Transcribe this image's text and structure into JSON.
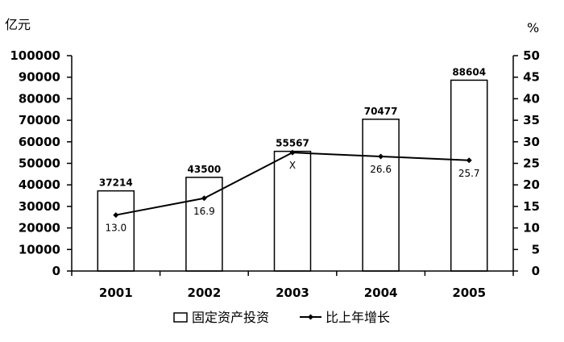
{
  "chart_data": {
    "type": "bar",
    "categories": [
      "2001",
      "2002",
      "2003",
      "2004",
      "2005"
    ],
    "left_unit": "亿元",
    "right_unit": "%",
    "ylim_left": [
      0,
      100000
    ],
    "yticks_left": [
      "0",
      "10000",
      "20000",
      "30000",
      "40000",
      "50000",
      "60000",
      "70000",
      "80000",
      "90000",
      "100000"
    ],
    "ylim_right": [
      0,
      50
    ],
    "yticks_right": [
      "0",
      "5",
      "10",
      "15",
      "20",
      "25",
      "30",
      "35",
      "40",
      "45",
      "50"
    ],
    "series": [
      {
        "name": "固定资产投资",
        "type": "bar",
        "axis": "left",
        "values": [
          37214,
          43500,
          55567,
          70477,
          88604
        ],
        "labels": [
          "37214",
          "43500",
          "55567",
          "70477",
          "88604"
        ]
      },
      {
        "name": "比上年增长",
        "type": "line",
        "axis": "right",
        "values": [
          13.0,
          16.9,
          27.5,
          26.6,
          25.7
        ],
        "labels": [
          "13.0",
          "16.9",
          "X",
          "26.6",
          "25.7"
        ]
      }
    ],
    "legend_position": "bottom",
    "grid": false
  }
}
